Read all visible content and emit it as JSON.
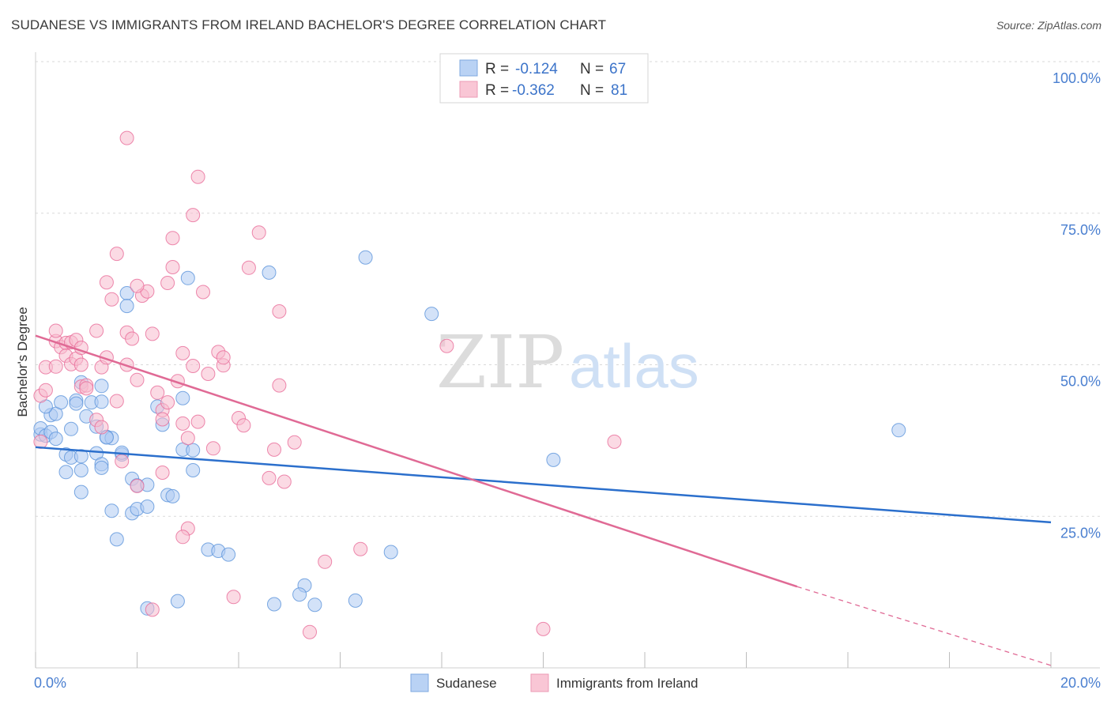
{
  "title": "SUDANESE VS IMMIGRANTS FROM IRELAND BACHELOR'S DEGREE CORRELATION CHART",
  "source": "Source: ZipAtlas.com",
  "watermark": {
    "zip": "ZIP",
    "atlas": "atlas"
  },
  "legend_top": [
    {
      "r_label": "R =",
      "r_value": "-0.124",
      "n_label": "N =",
      "n_value": "67",
      "color": "#a9c6f0"
    },
    {
      "r_label": "R =",
      "r_value": "-0.362",
      "n_label": "N =",
      "n_value": "81",
      "color": "#f5b8cb"
    }
  ],
  "chart_data": {
    "type": "scatter",
    "title": "SUDANESE VS IMMIGRANTS FROM IRELAND BACHELOR'S DEGREE CORRELATION CHART",
    "xlabel": "",
    "ylabel": "Bachelor's Degree",
    "xlim": [
      0,
      20
    ],
    "ylim": [
      0,
      100
    ],
    "x_tick_labels": [
      "0.0%",
      "20.0%"
    ],
    "y_tick_labels": [
      "25.0%",
      "50.0%",
      "75.0%",
      "100.0%"
    ],
    "y_ticks": [
      25,
      50,
      75,
      100
    ],
    "grid": true,
    "legend_placement": "bottom",
    "series": [
      {
        "name": "Sudanese",
        "color": "#5b93db",
        "fill": "#aecbf2",
        "points": [
          [
            0.1,
            38.5
          ],
          [
            0.1,
            39.5
          ],
          [
            0.2,
            38.3
          ],
          [
            0.3,
            38.9
          ],
          [
            0.4,
            37.8
          ],
          [
            0.3,
            41.7
          ],
          [
            0.4,
            41.9
          ],
          [
            0.2,
            43.1
          ],
          [
            0.5,
            43.8
          ],
          [
            0.7,
            39.4
          ],
          [
            0.6,
            35.2
          ],
          [
            0.7,
            34.7
          ],
          [
            0.9,
            34.9
          ],
          [
            1.2,
            35.4
          ],
          [
            1.3,
            33.6
          ],
          [
            0.9,
            32.6
          ],
          [
            0.6,
            32.3
          ],
          [
            0.9,
            29.0
          ],
          [
            1.0,
            41.5
          ],
          [
            0.8,
            44.1
          ],
          [
            0.8,
            43.6
          ],
          [
            0.9,
            47.1
          ],
          [
            1.1,
            43.8
          ],
          [
            1.3,
            43.9
          ],
          [
            1.3,
            46.5
          ],
          [
            1.2,
            39.8
          ],
          [
            1.4,
            38.1
          ],
          [
            1.5,
            37.9
          ],
          [
            1.7,
            35.2
          ],
          [
            1.7,
            35.5
          ],
          [
            1.3,
            33.0
          ],
          [
            1.9,
            31.2
          ],
          [
            2.0,
            30.1
          ],
          [
            2.2,
            30.2
          ],
          [
            1.5,
            25.9
          ],
          [
            1.9,
            25.5
          ],
          [
            2.0,
            26.2
          ],
          [
            2.2,
            26.6
          ],
          [
            2.6,
            28.5
          ],
          [
            2.7,
            28.3
          ],
          [
            1.6,
            21.2
          ],
          [
            2.5,
            40.1
          ],
          [
            2.9,
            36.0
          ],
          [
            3.1,
            35.9
          ],
          [
            3.1,
            32.6
          ],
          [
            2.9,
            44.5
          ],
          [
            2.4,
            43.1
          ],
          [
            1.8,
            61.8
          ],
          [
            1.8,
            59.7
          ],
          [
            3.0,
            64.3
          ],
          [
            4.6,
            65.2
          ],
          [
            6.5,
            67.7
          ],
          [
            7.8,
            58.4
          ],
          [
            10.2,
            34.3
          ],
          [
            17.0,
            39.2
          ],
          [
            3.4,
            19.5
          ],
          [
            3.6,
            19.3
          ],
          [
            3.8,
            18.7
          ],
          [
            7.0,
            19.1
          ],
          [
            5.3,
            13.6
          ],
          [
            5.2,
            12.1
          ],
          [
            4.7,
            10.5
          ],
          [
            5.5,
            10.4
          ],
          [
            6.3,
            11.1
          ],
          [
            2.2,
            9.8
          ],
          [
            2.8,
            11.0
          ],
          [
            1.4,
            38.0
          ]
        ]
      },
      {
        "name": "Immigrants from Ireland",
        "color": "#e86c98",
        "fill": "#f7bccd",
        "points": [
          [
            0.1,
            37.3
          ],
          [
            0.1,
            44.9
          ],
          [
            0.2,
            45.8
          ],
          [
            0.2,
            49.6
          ],
          [
            0.4,
            49.7
          ],
          [
            0.4,
            53.9
          ],
          [
            0.4,
            55.6
          ],
          [
            0.5,
            52.9
          ],
          [
            0.6,
            53.6
          ],
          [
            0.6,
            51.5
          ],
          [
            0.7,
            53.7
          ],
          [
            0.7,
            50.1
          ],
          [
            0.8,
            51.0
          ],
          [
            0.8,
            54.1
          ],
          [
            0.9,
            50.0
          ],
          [
            0.9,
            52.8
          ],
          [
            0.9,
            46.4
          ],
          [
            1.0,
            46.6
          ],
          [
            1.0,
            46.1
          ],
          [
            1.2,
            55.6
          ],
          [
            1.3,
            49.6
          ],
          [
            1.4,
            51.2
          ],
          [
            1.2,
            40.9
          ],
          [
            1.3,
            39.7
          ],
          [
            1.6,
            44.0
          ],
          [
            1.7,
            34.1
          ],
          [
            1.8,
            50.0
          ],
          [
            1.8,
            55.3
          ],
          [
            1.9,
            54.3
          ],
          [
            2.0,
            47.5
          ],
          [
            2.1,
            61.4
          ],
          [
            2.2,
            62.1
          ],
          [
            2.0,
            63.0
          ],
          [
            2.3,
            55.1
          ],
          [
            2.4,
            45.4
          ],
          [
            2.5,
            42.5
          ],
          [
            2.5,
            32.2
          ],
          [
            2.6,
            43.8
          ],
          [
            2.6,
            63.5
          ],
          [
            2.7,
            66.1
          ],
          [
            2.7,
            70.9
          ],
          [
            2.8,
            47.3
          ],
          [
            2.9,
            51.9
          ],
          [
            2.9,
            40.3
          ],
          [
            3.0,
            37.9
          ],
          [
            3.1,
            49.8
          ],
          [
            3.2,
            40.6
          ],
          [
            3.3,
            62.0
          ],
          [
            3.4,
            48.5
          ],
          [
            3.5,
            36.2
          ],
          [
            3.6,
            52.1
          ],
          [
            3.7,
            49.9
          ],
          [
            3.7,
            51.2
          ],
          [
            4.0,
            41.2
          ],
          [
            4.1,
            40.0
          ],
          [
            4.2,
            66.0
          ],
          [
            4.4,
            71.8
          ],
          [
            4.6,
            31.3
          ],
          [
            4.7,
            36.0
          ],
          [
            4.8,
            46.6
          ],
          [
            4.8,
            58.8
          ],
          [
            4.9,
            30.7
          ],
          [
            5.1,
            37.2
          ],
          [
            1.6,
            68.3
          ],
          [
            1.4,
            63.6
          ],
          [
            1.5,
            60.8
          ],
          [
            1.8,
            87.4
          ],
          [
            3.2,
            81.0
          ],
          [
            3.1,
            74.7
          ],
          [
            8.1,
            53.1
          ],
          [
            11.4,
            37.3
          ],
          [
            3.0,
            23.0
          ],
          [
            2.9,
            21.6
          ],
          [
            6.4,
            19.6
          ],
          [
            5.7,
            17.5
          ],
          [
            3.9,
            11.7
          ],
          [
            5.4,
            5.9
          ],
          [
            10.0,
            6.4
          ],
          [
            2.3,
            9.6
          ],
          [
            2.5,
            41.0
          ],
          [
            2.0,
            30.0
          ]
        ]
      }
    ],
    "trend_lines": [
      {
        "series": "Sudanese",
        "x": [
          0,
          20
        ],
        "y": [
          36.4,
          24.0
        ]
      },
      {
        "series": "Immigrants from Ireland",
        "x": [
          0,
          15.0
        ],
        "y": [
          54.8,
          13.4
        ],
        "dashed_to": [
          20,
          0.4
        ]
      }
    ]
  },
  "legend_bottom": [
    {
      "label": "Sudanese",
      "color": "#aecbf2"
    },
    {
      "label": "Immigrants from Ireland",
      "color": "#f7bccd"
    }
  ]
}
